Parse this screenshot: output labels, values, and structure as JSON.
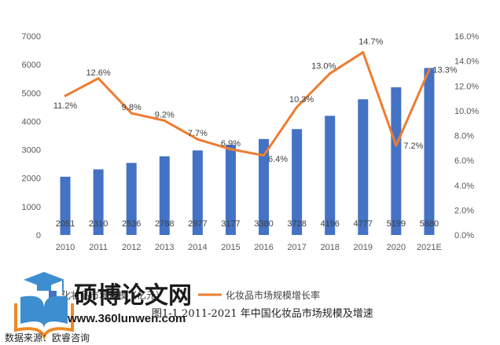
{
  "chart_data": {
    "type": "bar+line",
    "categories": [
      "2010",
      "2011",
      "2012",
      "2013",
      "2014",
      "2015",
      "2016",
      "2017",
      "2018",
      "2019",
      "2020",
      "2021E"
    ],
    "series": [
      {
        "name": "化妆品市场规模（亿元）",
        "type": "bar",
        "axis": "left",
        "color": "#4472c4",
        "values": [
          2051,
          2310,
          2536,
          2768,
          2977,
          3177,
          3380,
          3728,
          4196,
          4777,
          5199,
          5880
        ],
        "labels": [
          "2051",
          "2310",
          "2536",
          "2768",
          "2977",
          "3177",
          "3380",
          "3728",
          "4196",
          "4777",
          "5199",
          "5880"
        ]
      },
      {
        "name": "化妆品市场规模增长率",
        "type": "line",
        "axis": "right",
        "color": "#ed7d31",
        "values": [
          11.2,
          12.6,
          9.8,
          9.2,
          7.7,
          6.9,
          6.4,
          10.3,
          13.0,
          14.7,
          7.2,
          13.3
        ],
        "labels": [
          "11.2%",
          "12.6%",
          "9.8%",
          "9.2%",
          "7.7%",
          "6.9%",
          "6.4%",
          "10.3%",
          "13.0%",
          "14.7%",
          "7.2%",
          "13.3%"
        ]
      }
    ],
    "y_left": {
      "min": 0,
      "max": 7000,
      "ticks": [
        "0",
        "1000",
        "2000",
        "3000",
        "4000",
        "5000",
        "6000",
        "7000"
      ]
    },
    "y_right": {
      "min": 0,
      "max": 16,
      "ticks": [
        "0.0%",
        "2.0%",
        "4.0%",
        "6.0%",
        "8.0%",
        "10.0%",
        "12.0%",
        "14.0%",
        "16.0%"
      ]
    },
    "grid": false,
    "legend_position": "bottom"
  },
  "legend": {
    "bar_label": "化妆品市场规模（亿元）",
    "line_label": "化妆品市场规模增长率"
  },
  "caption": "图1-1 2011-2021 年中国化妆品市场规模及增速",
  "source": "数据来源：欧睿咨询",
  "watermark": {
    "name": "硕博论文网",
    "url": "www.360lunwen.com"
  }
}
